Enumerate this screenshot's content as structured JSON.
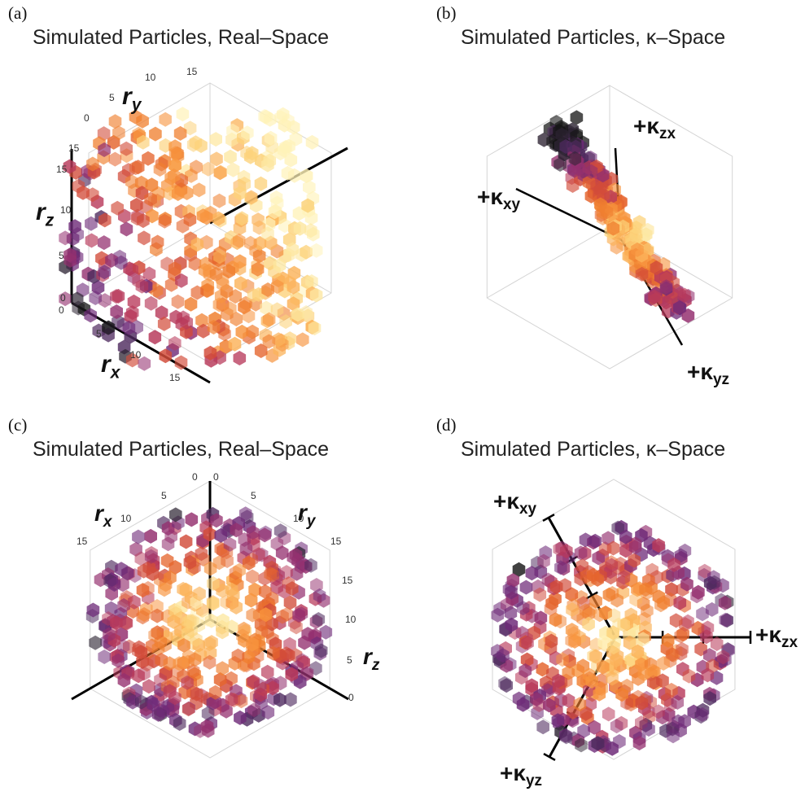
{
  "chart_data": [
    {
      "id": "a",
      "panel_label": "(a)",
      "type": "scatter",
      "title": "Simulated Particles, Real–Space",
      "projection": "3d-isometric",
      "marker": "hexagon",
      "colormap": "inferno",
      "axes": [
        {
          "name": "r",
          "sub": "y",
          "ticks": [
            "0",
            "5",
            "10",
            "15"
          ],
          "range": [
            0,
            18
          ]
        },
        {
          "name": "r",
          "sub": "z",
          "ticks": [
            "0",
            "5",
            "10",
            "15"
          ],
          "range": [
            0,
            18
          ]
        },
        {
          "name": "r",
          "sub": "x",
          "ticks": [
            "0",
            "5",
            "10",
            "15"
          ],
          "range": [
            0,
            18
          ]
        }
      ]
    },
    {
      "id": "b",
      "panel_label": "(b)",
      "type": "scatter",
      "title": "Simulated Particles, κ–Space",
      "projection": "3d-isometric",
      "marker": "hexagon",
      "colormap": "inferno",
      "axes": [
        {
          "prefix": "+κ",
          "sub": "zx"
        },
        {
          "prefix": "+κ",
          "sub": "xy"
        },
        {
          "prefix": "+κ",
          "sub": "yz"
        }
      ]
    },
    {
      "id": "c",
      "panel_label": "(c)",
      "type": "scatter",
      "title": "Simulated Particles, Real–Space",
      "projection": "3d-isometric",
      "marker": "hexagon",
      "colormap": "inferno",
      "axes": [
        {
          "name": "r",
          "sub": "x",
          "ticks": [
            "0",
            "5",
            "10",
            "15"
          ]
        },
        {
          "name": "r",
          "sub": "y",
          "ticks": [
            "0",
            "5",
            "10",
            "15"
          ]
        },
        {
          "name": "r",
          "sub": "z",
          "ticks": [
            "0",
            "5",
            "10",
            "15"
          ]
        }
      ]
    },
    {
      "id": "d",
      "panel_label": "(d)",
      "type": "scatter",
      "title": "Simulated Particles, κ–Space",
      "projection": "3d-isometric",
      "marker": "hexagon",
      "colormap": "inferno",
      "axes": [
        {
          "prefix": "+κ",
          "sub": "xy"
        },
        {
          "prefix": "+κ",
          "sub": "zx"
        },
        {
          "prefix": "+κ",
          "sub": "yz"
        }
      ]
    }
  ]
}
